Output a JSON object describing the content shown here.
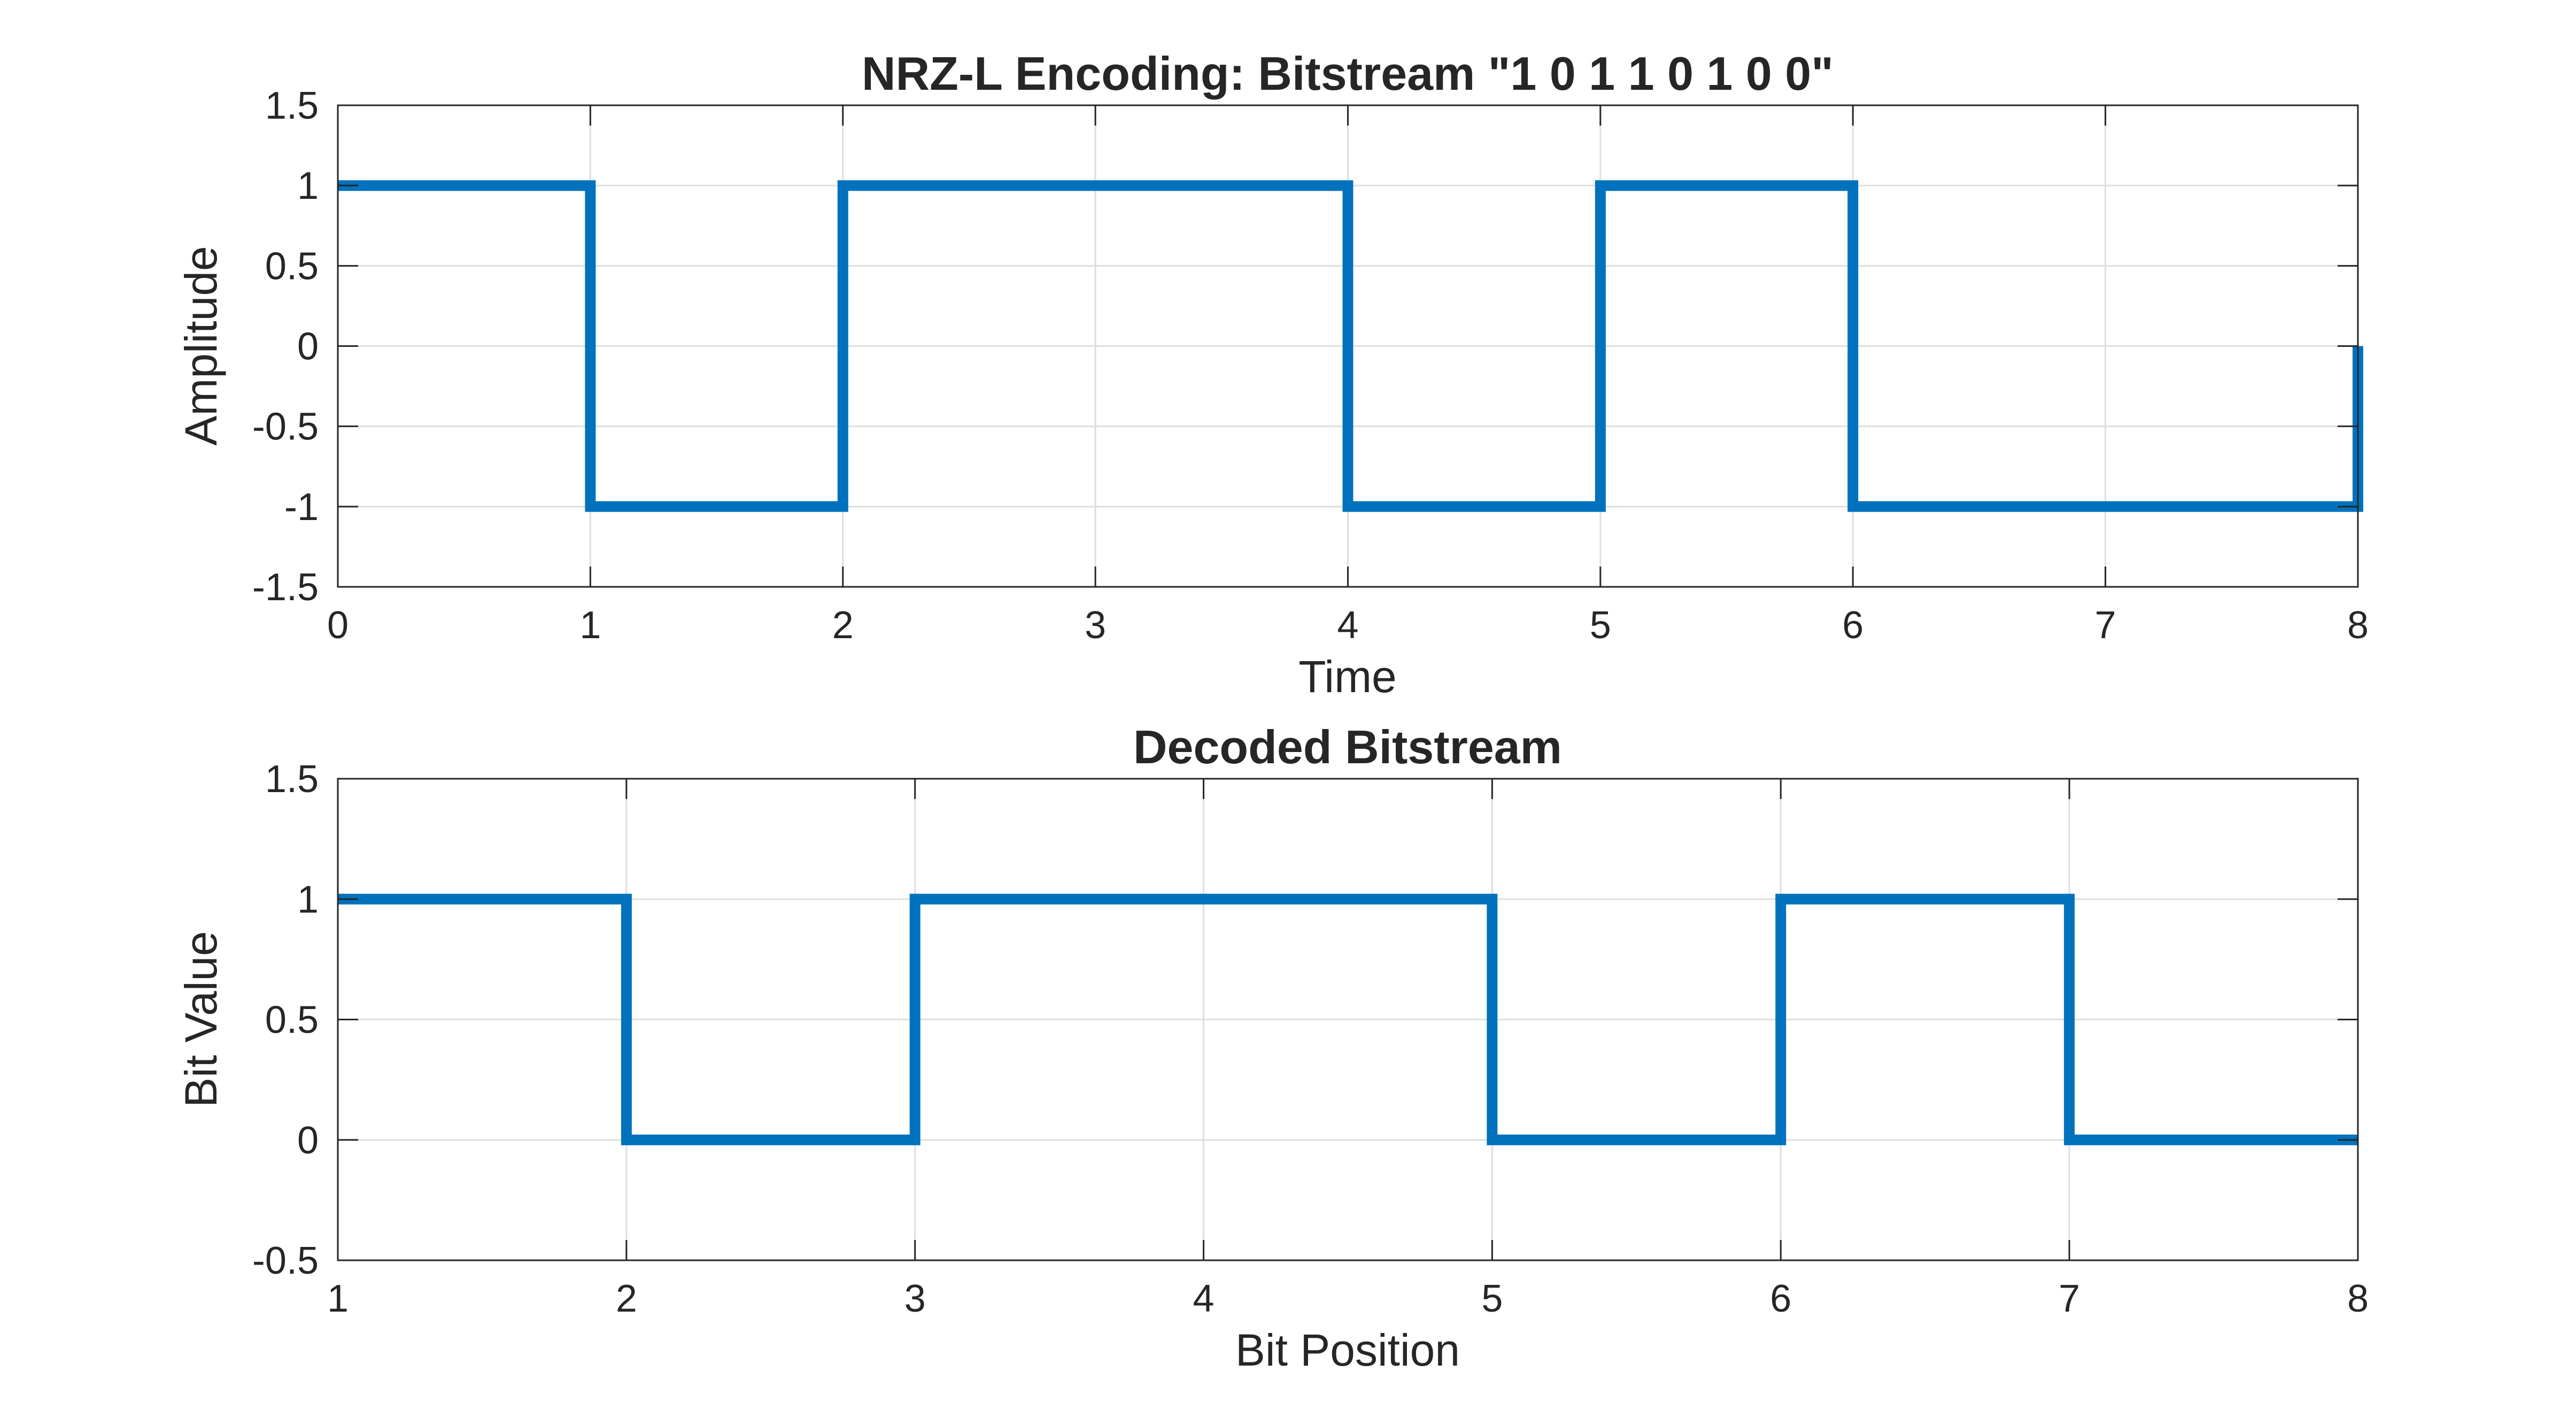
{
  "chart_data": [
    {
      "type": "line",
      "step": true,
      "title": "NRZ-L Encoding: Bitstream \"1 0 1 1 0 1 0 0\"",
      "xlabel": "Time",
      "ylabel": "Amplitude",
      "xlim": [
        0,
        8
      ],
      "ylim": [
        -1.5,
        1.5
      ],
      "xticks": [
        "0",
        "1",
        "2",
        "3",
        "4",
        "5",
        "6",
        "7",
        "8"
      ],
      "yticks": [
        "-1.5",
        "-1",
        "-0.5",
        "0",
        "0.5",
        "1",
        "1.5"
      ],
      "grid": true,
      "series": [
        {
          "color": "#0072BD",
          "x": [
            0,
            1,
            1,
            2,
            2,
            4,
            4,
            5,
            5,
            6,
            6,
            8,
            8
          ],
          "y": [
            1,
            1,
            -1,
            -1,
            1,
            1,
            -1,
            -1,
            1,
            1,
            -1,
            -1,
            0
          ]
        }
      ]
    },
    {
      "type": "line",
      "step": true,
      "title": "Decoded Bitstream",
      "xlabel": "Bit Position",
      "ylabel": "Bit Value",
      "xlim": [
        1,
        8
      ],
      "ylim": [
        -0.5,
        1.5
      ],
      "xticks": [
        "1",
        "2",
        "3",
        "4",
        "5",
        "6",
        "7",
        "8"
      ],
      "yticks": [
        "-0.5",
        "0",
        "0.5",
        "1",
        "1.5"
      ],
      "grid": true,
      "series": [
        {
          "color": "#0072BD",
          "x": [
            1,
            2,
            2,
            3,
            3,
            5,
            5,
            6,
            6,
            7,
            7,
            8
          ],
          "y": [
            1,
            1,
            0,
            0,
            1,
            1,
            0,
            0,
            1,
            1,
            0,
            0
          ]
        }
      ]
    }
  ]
}
